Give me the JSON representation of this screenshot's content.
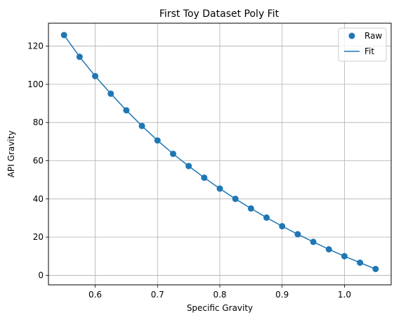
{
  "chart_data": {
    "type": "scatter",
    "title": "First Toy Dataset Poly Fit",
    "xlabel": "Specific Gravity",
    "ylabel": "API Gravity",
    "xlim": [
      0.525,
      1.075
    ],
    "ylim": [
      -5,
      132
    ],
    "xticks": [
      0.6,
      0.7,
      0.8,
      0.9,
      1.0
    ],
    "yticks": [
      0,
      20,
      40,
      60,
      80,
      100,
      120
    ],
    "grid": true,
    "legend_position": "top-right",
    "series_color": "#1f77b4",
    "series": [
      {
        "name": "Raw",
        "kind": "scatter",
        "x": [
          0.55,
          0.575,
          0.6,
          0.625,
          0.65,
          0.675,
          0.7,
          0.725,
          0.75,
          0.775,
          0.8,
          0.825,
          0.85,
          0.875,
          0.9,
          0.925,
          0.95,
          0.975,
          1.0,
          1.025,
          1.05
        ],
        "y": [
          125.8,
          114.4,
          104.3,
          95.1,
          86.4,
          78.2,
          70.6,
          63.6,
          57.2,
          51.1,
          45.4,
          40.0,
          35.0,
          30.2,
          25.7,
          21.5,
          17.5,
          13.6,
          10.0,
          6.6,
          3.3
        ]
      },
      {
        "name": "Fit",
        "kind": "line",
        "x": [
          0.55,
          0.575,
          0.6,
          0.625,
          0.65,
          0.675,
          0.7,
          0.725,
          0.75,
          0.775,
          0.8,
          0.825,
          0.85,
          0.875,
          0.9,
          0.925,
          0.95,
          0.975,
          1.0,
          1.025,
          1.05
        ],
        "y": [
          125.8,
          114.4,
          104.3,
          95.1,
          86.4,
          78.2,
          70.6,
          63.6,
          57.2,
          51.1,
          45.4,
          40.0,
          35.0,
          30.2,
          25.7,
          21.5,
          17.5,
          13.6,
          10.0,
          6.6,
          3.3
        ]
      }
    ]
  }
}
